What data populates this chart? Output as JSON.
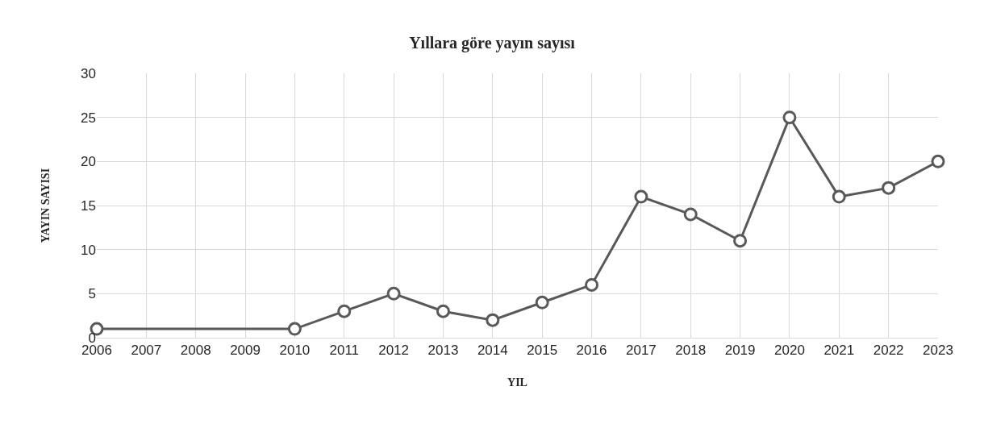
{
  "chart_data": {
    "type": "line",
    "title": "Yıllara göre yayın sayısı",
    "xlabel": "YIL",
    "ylabel": "YAYIN SAYISI",
    "x": [
      2006,
      2010,
      2011,
      2012,
      2013,
      2014,
      2015,
      2016,
      2017,
      2018,
      2019,
      2020,
      2021,
      2022,
      2023
    ],
    "series": [
      {
        "color": "#595959",
        "values": [
          1,
          1,
          3,
          5,
          3,
          2,
          4,
          6,
          16,
          14,
          11,
          25,
          16,
          17,
          20
        ]
      }
    ],
    "xlim": [
      2006,
      2023
    ],
    "xticks": [
      2006,
      2007,
      2008,
      2009,
      2010,
      2011,
      2012,
      2013,
      2014,
      2015,
      2016,
      2017,
      2018,
      2019,
      2020,
      2021,
      2022,
      2023
    ],
    "ylim": [
      0,
      30
    ],
    "yticks": [
      0,
      5,
      10,
      15,
      20,
      25,
      30
    ],
    "grid": true,
    "marker": "circle",
    "line_style": "solid"
  }
}
